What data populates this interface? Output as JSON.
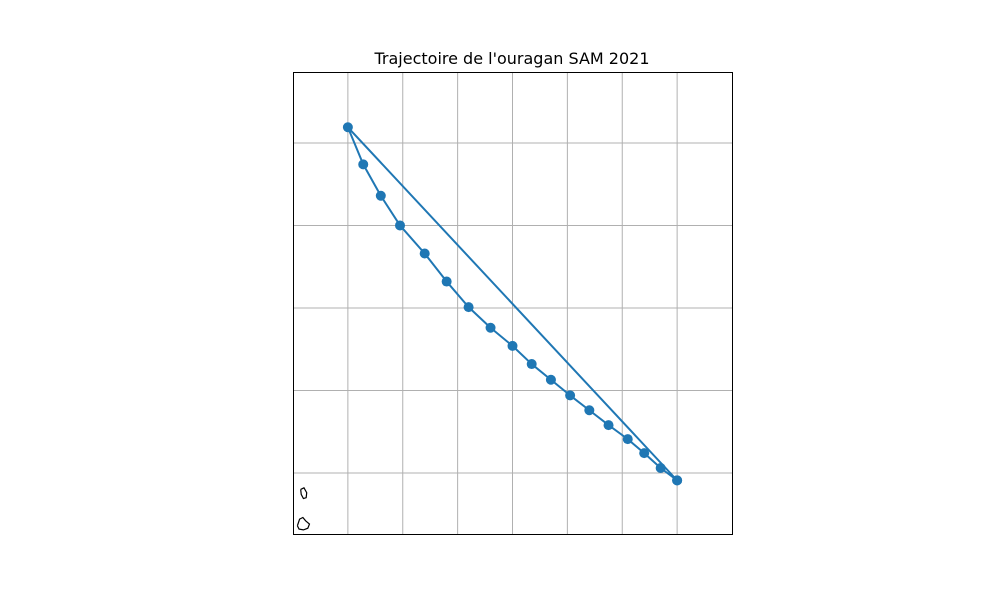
{
  "chart_data": {
    "type": "line",
    "title": "Trajectoire de l'ouragan SAM 2021",
    "xlabel": "",
    "ylabel": "",
    "grid": true,
    "legend": "none",
    "series_color": "#1f77b4",
    "xlim": [
      0,
      8
    ],
    "ylim": [
      0,
      5.6
    ],
    "x_gridlines": [
      1,
      2,
      3,
      4,
      5,
      6,
      7
    ],
    "y_gridlines": [
      0.74,
      1.74,
      2.74,
      3.74,
      4.74
    ],
    "track": {
      "x": [
        7.0,
        6.7,
        6.4,
        6.1,
        5.75,
        5.4,
        5.05,
        4.7,
        4.35,
        4.0,
        3.6,
        3.2,
        2.8,
        2.4,
        1.95,
        1.6,
        1.28,
        1.0,
        7.0
      ],
      "y": [
        0.65,
        0.8,
        0.98,
        1.15,
        1.32,
        1.5,
        1.68,
        1.87,
        2.06,
        2.28,
        2.5,
        2.75,
        3.06,
        3.4,
        3.74,
        4.1,
        4.48,
        4.93,
        0.65
      ]
    },
    "coastlines": [
      {
        "name": "small-island-north",
        "x": [
          0.14,
          0.2,
          0.25,
          0.24,
          0.19,
          0.15,
          0.14
        ],
        "y": [
          0.54,
          0.56,
          0.5,
          0.44,
          0.43,
          0.48,
          0.54
        ]
      },
      {
        "name": "small-island-south",
        "x": [
          0.08,
          0.12,
          0.18,
          0.23,
          0.3,
          0.27,
          0.19,
          0.11,
          0.08
        ],
        "y": [
          0.1,
          0.18,
          0.2,
          0.16,
          0.12,
          0.07,
          0.05,
          0.06,
          0.1
        ]
      }
    ]
  }
}
